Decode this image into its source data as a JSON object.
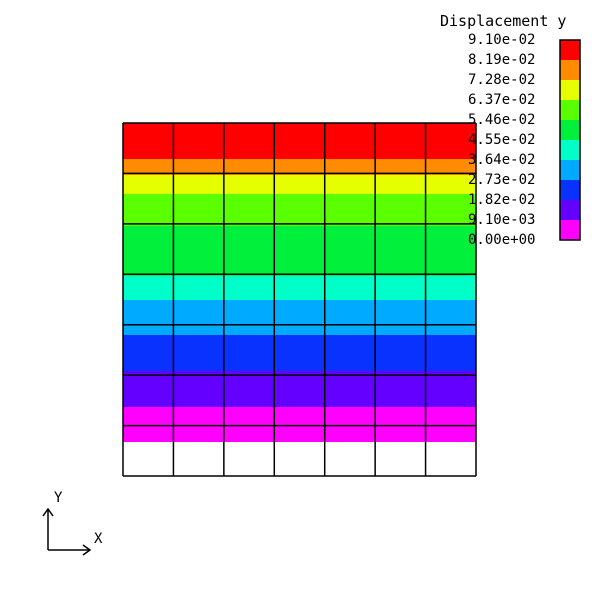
{
  "legend": {
    "title": "Displacement y",
    "labels": [
      "9.10e-02",
      "8.19e-02",
      "7.28e-02",
      "6.37e-02",
      "5.46e-02",
      "4.55e-02",
      "3.64e-02",
      "2.73e-02",
      "1.82e-02",
      "9.10e-03",
      "0.00e+00"
    ],
    "colors": [
      "#ff0000",
      "#ff8c00",
      "#e6ff00",
      "#5aff00",
      "#00f03c",
      "#00ffc8",
      "#00aaff",
      "#0a32ff",
      "#6400ff",
      "#ff00ff"
    ]
  },
  "mesh": {
    "columns": 7,
    "rows": 7,
    "bands": [
      {
        "color": "#ff0000",
        "from": 0.0,
        "to": 0.1
      },
      {
        "color": "#ff8c00",
        "from": 0.1,
        "to": 0.2
      },
      {
        "color": "#e6ff00",
        "from": 0.2,
        "to": 0.3
      },
      {
        "color": "#5aff00",
        "from": 0.3,
        "to": 0.4
      },
      {
        "color": "#00f03c",
        "from": 0.4,
        "to": 0.5
      },
      {
        "color": "#00ffc8",
        "from": 0.5,
        "to": 0.6
      },
      {
        "color": "#00aaff",
        "from": 0.6,
        "to": 0.7
      },
      {
        "color": "#0a32ff",
        "from": 0.7,
        "to": 0.8
      },
      {
        "color": "#6400ff",
        "from": 0.8,
        "to": 0.9
      },
      {
        "color": "#ff00ff",
        "from": 0.9,
        "to": 1.0
      }
    ]
  },
  "axes": {
    "x_label": "X",
    "y_label": "Y"
  }
}
